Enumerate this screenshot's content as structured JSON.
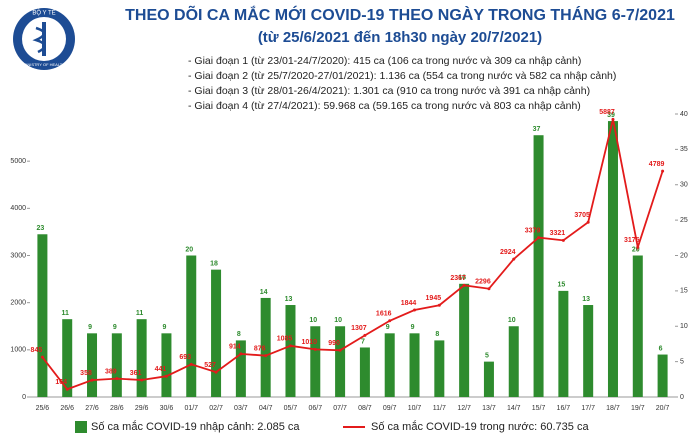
{
  "header": {
    "logo_top": "BỘ Y TẾ",
    "logo_bottom": "MINISTRY OF HEALTH"
  },
  "chart_data": {
    "type": "bar-line",
    "title": "THEO DÕI CA MẮC MỚI COVID-19 THEO NGÀY TRONG THÁNG 6-7/2021",
    "subtitle": "(từ 25/6/2021 đến 18h30 ngày 20/7/2021)",
    "notes": [
      "- Giai đoạn 1 (từ 23/01-24/7/2020): 415 ca (106 ca trong nước và 309 ca nhập cảnh)",
      "- Giai đoạn 2 (từ 25/7/2020-27/01/2021): 1.136 ca (554 ca trong nước và 582 ca nhập cảnh)",
      "- Giai đoạn 3 (từ 28/01-26/4/2021): 1.301 ca (910 ca trong nước và 391 ca nhập cảnh)",
      "- Giai đoạn 4 (từ 27/4/2021): 59.968 ca (59.165 ca trong nước và 803 ca nhập cảnh)"
    ],
    "categories": [
      "25/6",
      "26/6",
      "27/6",
      "28/6",
      "29/6",
      "30/6",
      "01/7",
      "02/7",
      "03/7",
      "04/7",
      "05/7",
      "06/7",
      "07/7",
      "08/7",
      "09/7",
      "10/7",
      "11/7",
      "12/7",
      "13/7",
      "14/7",
      "15/7",
      "16/7",
      "17/7",
      "18/7",
      "19/7",
      "20/7"
    ],
    "series": [
      {
        "name": "Số ca mắc COVID-19 nhập cảnh: 2.085 ca",
        "type": "bar",
        "axis": "y2",
        "color": "#2e8b2e",
        "values": [
          23,
          11,
          9,
          9,
          11,
          9,
          20,
          18,
          8,
          14,
          13,
          10,
          10,
          7,
          9,
          9,
          8,
          16,
          5,
          10,
          37,
          15,
          13,
          39,
          20,
          6
        ]
      },
      {
        "name": "Số ca mắc COVID-19 trong nước: 60.735 ca",
        "type": "line",
        "axis": "y",
        "color": "#e31b1b",
        "values": [
          845,
          164,
          358,
          389,
          361,
          441,
          693,
          527,
          914,
          876,
          1085,
          1010,
          990,
          1307,
          1616,
          1844,
          1945,
          2367,
          2296,
          2924,
          3379,
          3321,
          3705,
          5887,
          3175,
          4789
        ]
      }
    ],
    "ylim": [
      0,
      6000
    ],
    "yticks": [
      0,
      1000,
      2000,
      3000,
      4000,
      5000
    ],
    "y2lim": [
      0,
      40
    ],
    "y2ticks": [
      0,
      5,
      10,
      15,
      20,
      25,
      30,
      35,
      40
    ]
  }
}
